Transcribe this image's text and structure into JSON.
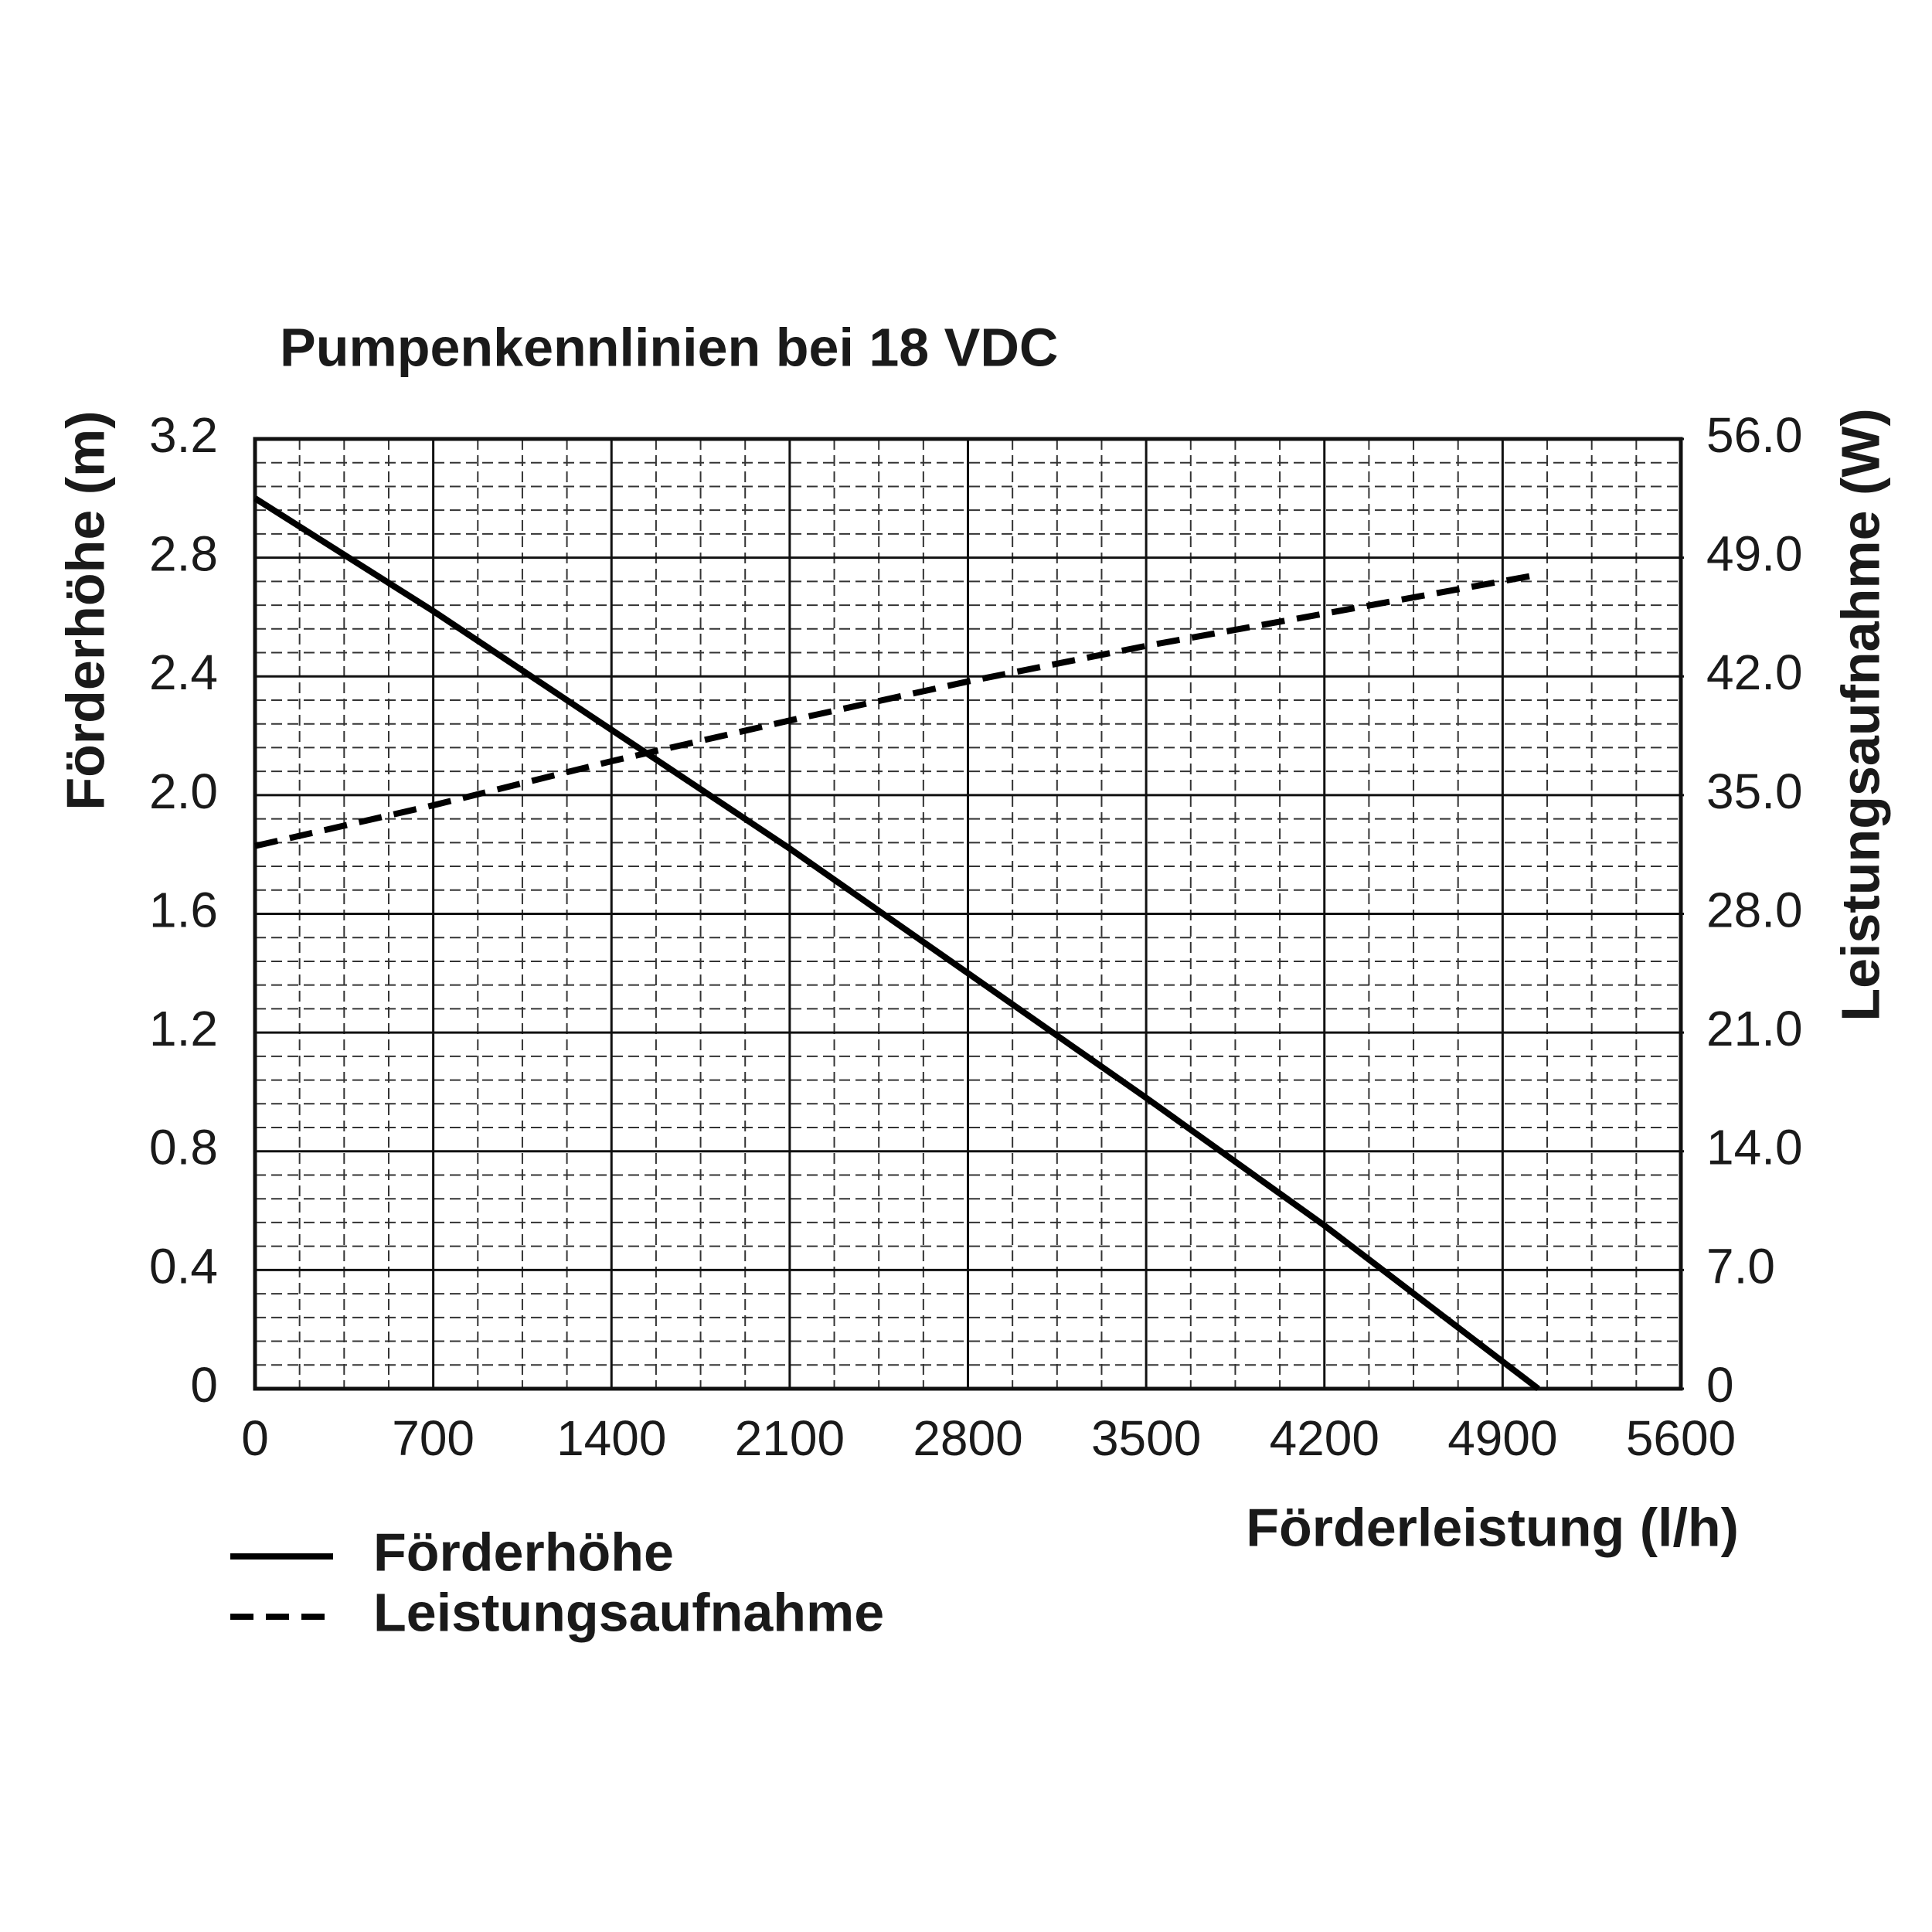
{
  "chart_data": {
    "type": "line",
    "title": "Pumpenkennlinien bei 18 VDC",
    "x_label": "Förderleistung (l/h)",
    "y_label": "Förderhöhe (m)",
    "y2_label": "Leistungsaufnahme (W)",
    "x": [
      0,
      700,
      1400,
      2100,
      2800,
      3500,
      4200,
      5040
    ],
    "series": [
      {
        "name": "Förderhöhe",
        "color": "#000000",
        "line_style": "solid",
        "values": [
          3.0,
          2.62,
          2.22,
          1.82,
          1.4,
          0.98,
          0.55,
          0
        ]
      },
      {
        "name": "Leistungsaufnahme",
        "color": "#000000",
        "line_style": "dashed",
        "axis": "y2",
        "values": [
          32,
          34.4,
          37.0,
          39.4,
          41.7,
          43.8,
          45.7,
          48.0
        ]
      }
    ],
    "xlim": [
      0,
      5600
    ],
    "xticks": [
      0,
      700,
      1400,
      2100,
      2800,
      3500,
      4200,
      4900,
      5600
    ],
    "ylim": [
      0,
      3.2
    ],
    "yticks": [
      0,
      0.4,
      0.8,
      1.2,
      1.6,
      {
        "value": 2,
        "label": "2.0"
      },
      2.4,
      2.8,
      3.2
    ],
    "y2lim": [
      0,
      56
    ],
    "y2ticks": [
      0,
      {
        "value": 7,
        "label": "7.0"
      },
      {
        "value": 14,
        "label": "14.0"
      },
      {
        "value": 21,
        "label": "21.0"
      },
      {
        "value": 28,
        "label": "28.0"
      },
      {
        "value": 35,
        "label": "35.0"
      },
      {
        "value": 42,
        "label": "42.0"
      },
      {
        "value": 49,
        "label": "49.0"
      },
      {
        "value": 56,
        "label": "56.0"
      }
    ],
    "grid": true,
    "minor_grid": {
      "x": 4,
      "y": 5
    },
    "legend": "bottom-left"
  }
}
